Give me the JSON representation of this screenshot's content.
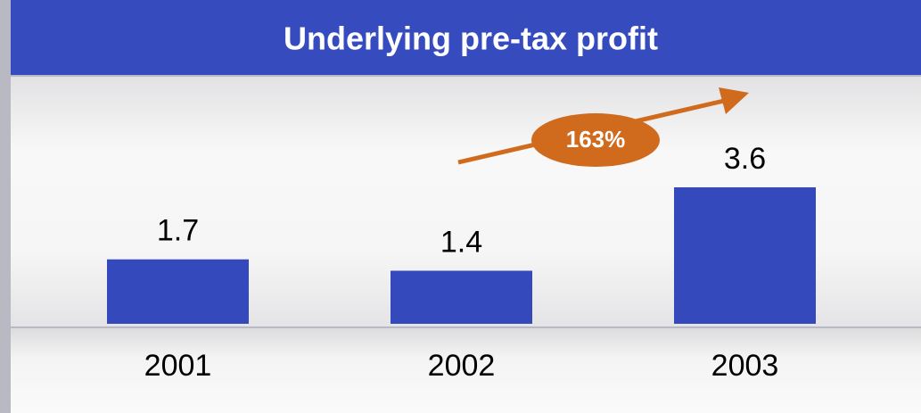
{
  "chart_data": {
    "type": "bar",
    "title": "Underlying pre-tax profit",
    "categories": [
      "2001",
      "2002",
      "2003"
    ],
    "values": [
      1.7,
      1.4,
      3.6
    ],
    "color": "#3449bb",
    "annotation": "163%",
    "annotation_color": "#d06a1c"
  }
}
